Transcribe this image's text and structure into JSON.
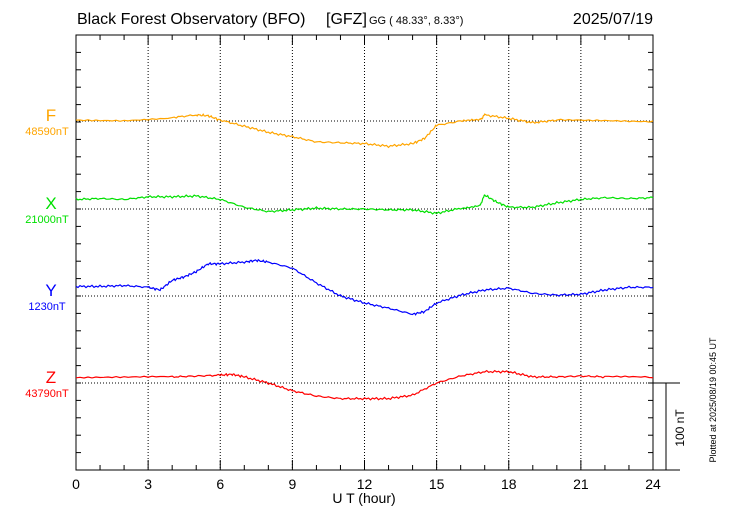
{
  "header": {
    "title": "Black Forest Observatory (BFO)",
    "source": "[GFZ]",
    "coords": "GG ( 48.33°,   8.33°)",
    "date": "2025/07/19"
  },
  "footer_note": "Plotted at 2025/08/19 00:45 UT",
  "chart_data": {
    "type": "line",
    "title": "Black Forest Observatory (BFO) [GFZ]",
    "xlabel": "U T (hour)",
    "xlim": [
      0,
      24
    ],
    "xticks": [
      "0",
      "3",
      "6",
      "9",
      "12",
      "15",
      "18",
      "21",
      "24"
    ],
    "scale_bar": {
      "label": "100 nT",
      "value_nT": 100
    },
    "grid": true,
    "series": [
      {
        "name": "F",
        "baseline_label": "48590nT",
        "baseline_nT": 48590,
        "color": "#ffa500",
        "x": [
          0,
          2,
          4,
          5,
          5.5,
          6,
          7,
          8,
          9,
          10,
          11,
          12,
          13,
          14,
          14.5,
          15,
          16,
          16.8,
          17,
          18,
          19,
          20,
          22,
          24
        ],
        "offset_nT": [
          1,
          1,
          4,
          7,
          6,
          1,
          -6,
          -13,
          -18,
          -24,
          -25,
          -26,
          -29,
          -26,
          -20,
          -5,
          0,
          1,
          7,
          3,
          -2,
          1,
          1,
          0
        ]
      },
      {
        "name": "X",
        "baseline_label": "21000nT",
        "baseline_nT": 21000,
        "color": "#00e000",
        "x": [
          0,
          1,
          2,
          3,
          4,
          5,
          6,
          7,
          8,
          9,
          10,
          11,
          12,
          13,
          14,
          15,
          16,
          16.8,
          17,
          17.5,
          18,
          19,
          20,
          21,
          22,
          23,
          24
        ],
        "offset_nT": [
          11,
          12,
          11,
          14,
          14,
          15,
          11,
          2,
          -3,
          -1,
          1,
          0,
          0,
          -1,
          -1,
          -5,
          1,
          4,
          16,
          8,
          2,
          2,
          7,
          11,
          13,
          12,
          13
        ]
      },
      {
        "name": "Y",
        "baseline_label": "1230nT",
        "baseline_nT": 1230,
        "color": "#0000ff",
        "x": [
          0,
          1,
          2,
          3,
          3.5,
          4,
          4.5,
          5,
          5.5,
          6,
          7,
          7.5,
          8,
          9,
          10,
          11,
          12,
          13,
          14,
          14.5,
          15,
          16,
          17,
          18,
          19,
          20,
          21,
          22,
          23,
          24
        ],
        "offset_nT": [
          11,
          11,
          12,
          10,
          7,
          18,
          22,
          28,
          37,
          37,
          39,
          41,
          39,
          32,
          15,
          0,
          -8,
          -14,
          -21,
          -18,
          -8,
          1,
          7,
          9,
          3,
          1,
          2,
          7,
          10,
          10
        ]
      },
      {
        "name": "Z",
        "baseline_label": "43790nT",
        "baseline_nT": 43790,
        "color": "#ff0000",
        "x": [
          0,
          2,
          4,
          5,
          6,
          6.5,
          7,
          8,
          9,
          10,
          11,
          12,
          13,
          14,
          15,
          16,
          17,
          18,
          19,
          20,
          21,
          22,
          24
        ],
        "offset_nT": [
          6,
          6,
          7,
          8,
          9,
          10,
          7,
          0,
          -9,
          -15,
          -18,
          -18,
          -18,
          -14,
          0,
          8,
          13,
          13,
          7,
          7,
          8,
          7,
          6
        ]
      }
    ]
  }
}
